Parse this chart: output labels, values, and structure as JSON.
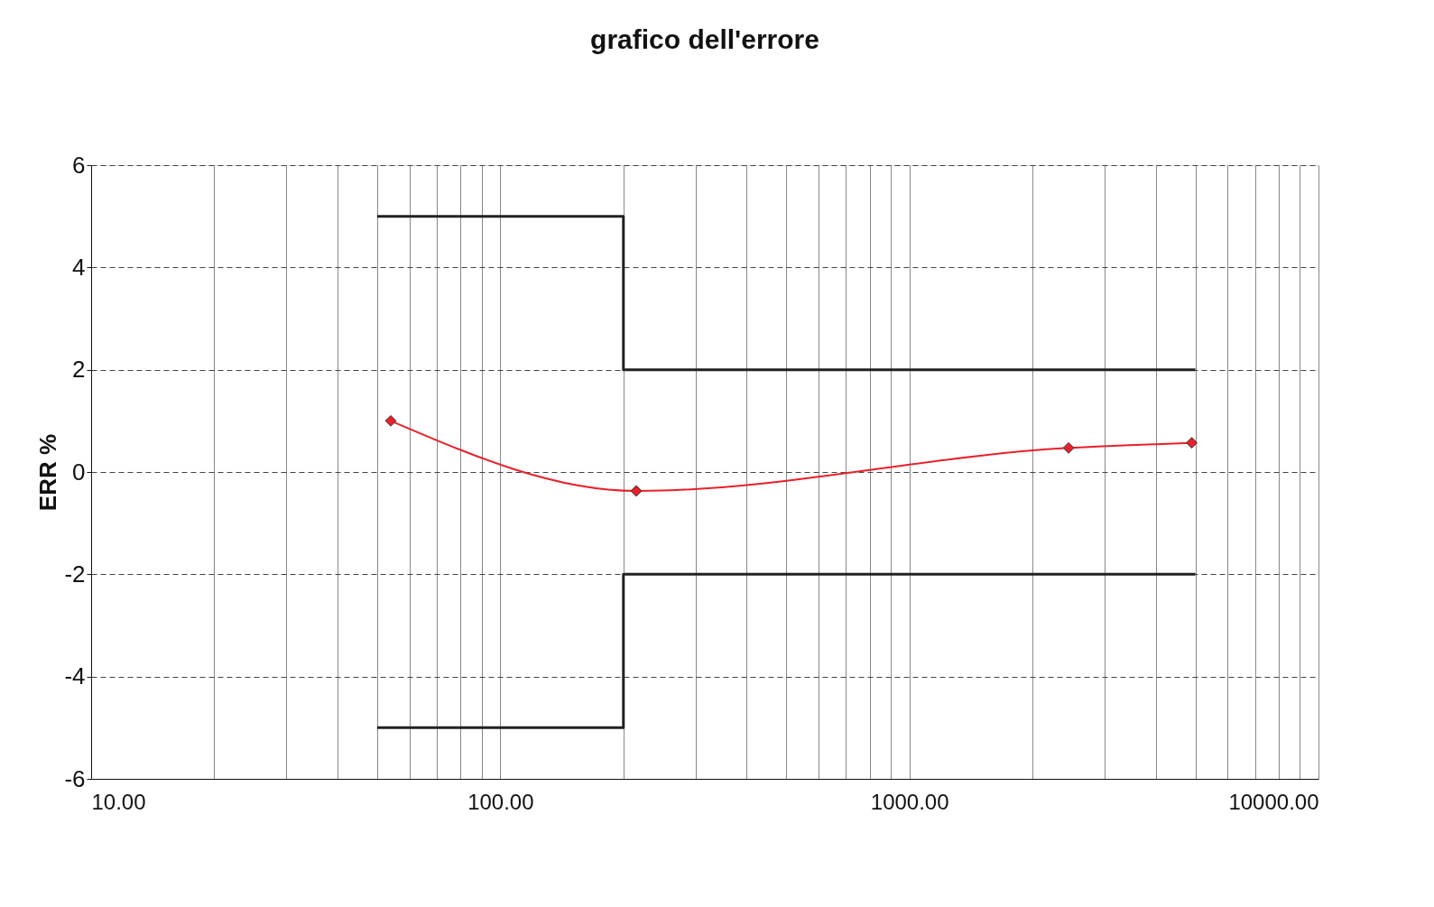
{
  "chart_data": {
    "type": "line",
    "title": "grafico dell'errore",
    "ylabel": "ERR %",
    "series": [
      {
        "color": "#e8202a",
        "marker": "diamond",
        "x": [
          54,
          215,
          2450,
          4900
        ],
        "values": [
          1.0,
          -0.37,
          0.47,
          0.57
        ]
      },
      {
        "color": "#222222",
        "marker": "none",
        "x": [
          50,
          200,
          200,
          5000
        ],
        "values": [
          5,
          5,
          2,
          2
        ]
      },
      {
        "color": "#222222",
        "marker": "none",
        "x": [
          50,
          200,
          200,
          5000
        ],
        "values": [
          -5,
          -5,
          -2,
          -2
        ]
      }
    ],
    "log": "x",
    "xlim": [
      10,
      10000
    ],
    "ylim": [
      -6,
      6
    ],
    "xticks": [
      {
        "value": 10,
        "label": "10.00"
      },
      {
        "value": 20,
        "label": null
      },
      {
        "value": 30,
        "label": null
      },
      {
        "value": 40,
        "label": null
      },
      {
        "value": 50,
        "label": null
      },
      {
        "value": 60,
        "label": null
      },
      {
        "value": 70,
        "label": null
      },
      {
        "value": 80,
        "label": null
      },
      {
        "value": 90,
        "label": null
      },
      {
        "value": 100,
        "label": "100.00"
      },
      {
        "value": 200,
        "label": null
      },
      {
        "value": 300,
        "label": null
      },
      {
        "value": 400,
        "label": null
      },
      {
        "value": 500,
        "label": null
      },
      {
        "value": 600,
        "label": null
      },
      {
        "value": 700,
        "label": null
      },
      {
        "value": 800,
        "label": null
      },
      {
        "value": 900,
        "label": null
      },
      {
        "value": 1000,
        "label": "1000.00"
      },
      {
        "value": 2000,
        "label": null
      },
      {
        "value": 3000,
        "label": null
      },
      {
        "value": 4000,
        "label": null
      },
      {
        "value": 5000,
        "label": null
      },
      {
        "value": 6000,
        "label": null
      },
      {
        "value": 7000,
        "label": null
      },
      {
        "value": 8000,
        "label": null
      },
      {
        "value": 9000,
        "label": null
      },
      {
        "value": 10000,
        "label": "10000.00"
      }
    ],
    "yticks": [
      -6,
      -4,
      -2,
      0,
      2,
      4,
      6
    ],
    "grid": true,
    "line_style": "solid"
  }
}
